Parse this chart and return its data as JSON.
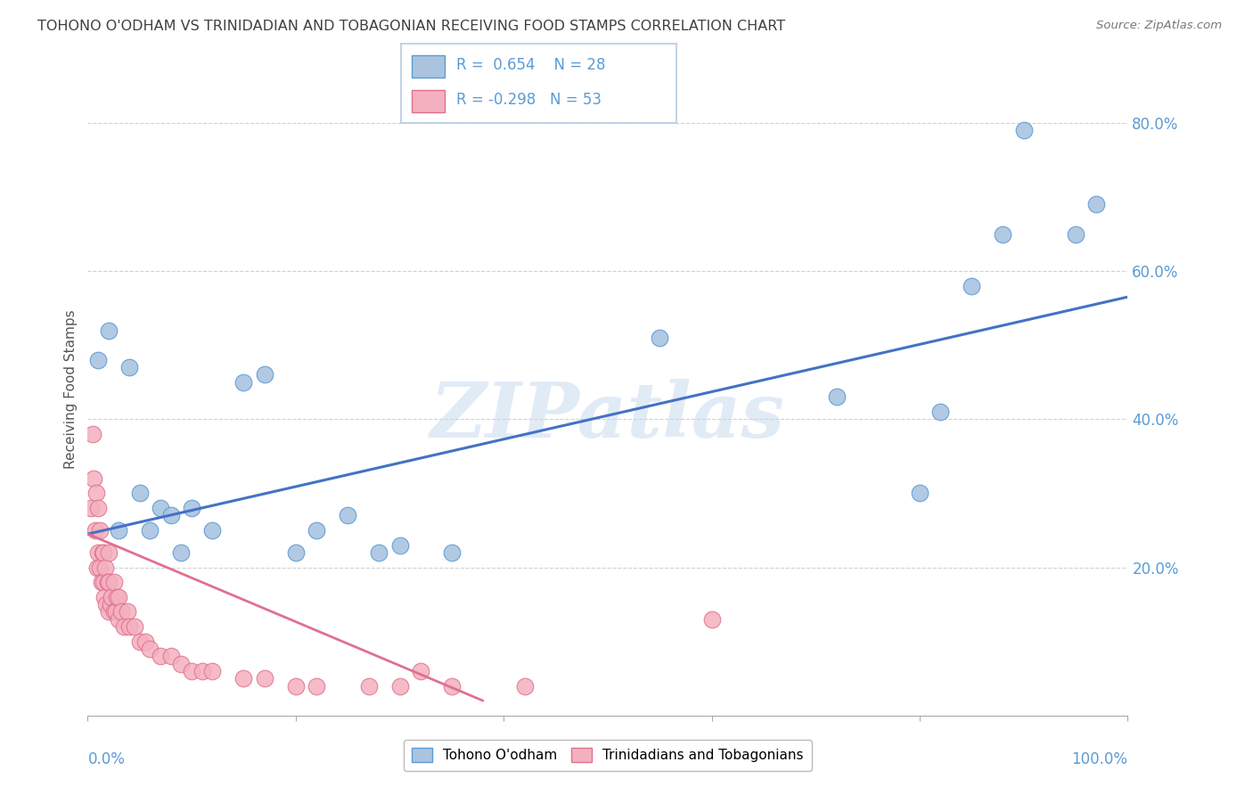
{
  "title": "TOHONO O'ODHAM VS TRINIDADIAN AND TOBAGONIAN RECEIVING FOOD STAMPS CORRELATION CHART",
  "source": "Source: ZipAtlas.com",
  "ylabel": "Receiving Food Stamps",
  "watermark": "ZIPatlas",
  "blue_label": "Tohono O'odham",
  "pink_label": "Trinidadians and Tobagonians",
  "blue_R": 0.654,
  "blue_N": 28,
  "pink_R": -0.298,
  "pink_N": 53,
  "blue_color": "#aac4e0",
  "blue_edge_color": "#5b9bd5",
  "pink_color": "#f4b0be",
  "pink_edge_color": "#e07090",
  "blue_line_color": "#4472c4",
  "pink_line_color": "#e07090",
  "background_color": "#ffffff",
  "grid_color": "#cccccc",
  "title_color": "#404040",
  "axis_tick_color": "#5b9bd5",
  "blue_scatter_x": [
    0.01,
    0.02,
    0.03,
    0.04,
    0.05,
    0.06,
    0.07,
    0.08,
    0.09,
    0.1,
    0.12,
    0.15,
    0.17,
    0.2,
    0.22,
    0.25,
    0.28,
    0.3,
    0.35,
    0.55,
    0.72,
    0.8,
    0.82,
    0.85,
    0.88,
    0.9,
    0.95,
    0.97
  ],
  "blue_scatter_y": [
    0.48,
    0.52,
    0.25,
    0.47,
    0.3,
    0.25,
    0.28,
    0.27,
    0.22,
    0.28,
    0.25,
    0.45,
    0.46,
    0.22,
    0.25,
    0.27,
    0.22,
    0.23,
    0.22,
    0.51,
    0.43,
    0.3,
    0.41,
    0.58,
    0.65,
    0.79,
    0.65,
    0.69
  ],
  "pink_scatter_x": [
    0.003,
    0.005,
    0.006,
    0.007,
    0.008,
    0.009,
    0.01,
    0.01,
    0.012,
    0.012,
    0.013,
    0.014,
    0.015,
    0.015,
    0.016,
    0.017,
    0.018,
    0.019,
    0.02,
    0.02,
    0.02,
    0.022,
    0.023,
    0.025,
    0.025,
    0.027,
    0.028,
    0.03,
    0.03,
    0.032,
    0.035,
    0.038,
    0.04,
    0.045,
    0.05,
    0.055,
    0.06,
    0.07,
    0.08,
    0.09,
    0.1,
    0.11,
    0.12,
    0.15,
    0.17,
    0.2,
    0.22,
    0.27,
    0.3,
    0.32,
    0.35,
    0.42,
    0.6
  ],
  "pink_scatter_y": [
    0.28,
    0.38,
    0.32,
    0.25,
    0.3,
    0.2,
    0.22,
    0.28,
    0.2,
    0.25,
    0.18,
    0.22,
    0.18,
    0.22,
    0.16,
    0.2,
    0.15,
    0.18,
    0.14,
    0.18,
    0.22,
    0.15,
    0.16,
    0.14,
    0.18,
    0.14,
    0.16,
    0.13,
    0.16,
    0.14,
    0.12,
    0.14,
    0.12,
    0.12,
    0.1,
    0.1,
    0.09,
    0.08,
    0.08,
    0.07,
    0.06,
    0.06,
    0.06,
    0.05,
    0.05,
    0.04,
    0.04,
    0.04,
    0.04,
    0.06,
    0.04,
    0.04,
    0.13
  ],
  "blue_line_x": [
    0.0,
    1.0
  ],
  "blue_line_y": [
    0.245,
    0.565
  ],
  "pink_line_x": [
    0.0,
    0.38
  ],
  "pink_line_y": [
    0.245,
    0.02
  ],
  "xlim": [
    0.0,
    1.0
  ],
  "ylim": [
    0.0,
    0.88
  ],
  "ytick_vals": [
    0.2,
    0.4,
    0.6,
    0.8
  ],
  "ytick_labels": [
    "20.0%",
    "40.0%",
    "60.0%",
    "80.0%"
  ],
  "figsize": [
    14.06,
    8.92
  ],
  "dpi": 100
}
